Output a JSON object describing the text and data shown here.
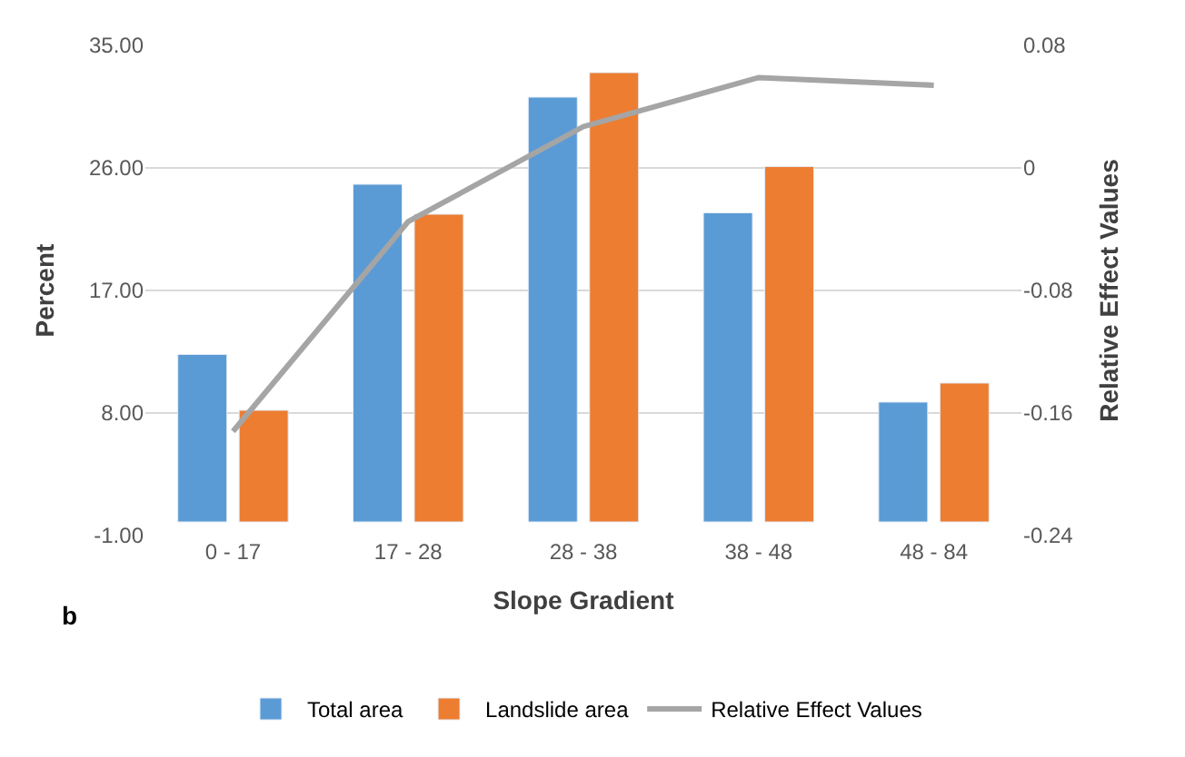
{
  "chart_data": {
    "type": "bar",
    "xlabel": "Slope Gradient",
    "ylabel": "Percent",
    "y2label": "Relative Effect Values",
    "categories": [
      "0 - 17",
      "17 - 28",
      "28 - 38",
      "38 - 48",
      "48 - 84"
    ],
    "series": [
      {
        "name": "Total area",
        "color": "#5b9bd5",
        "values": [
          12.3,
          24.8,
          31.2,
          22.7,
          8.8
        ]
      },
      {
        "name": "Landslide area",
        "color": "#ed7d31",
        "values": [
          8.2,
          22.6,
          33.0,
          26.1,
          10.2
        ]
      },
      {
        "name": "Relative Effect Values",
        "type": "line",
        "axis": "y2",
        "color": "#a5a5a5",
        "marker": "none",
        "values": [
          -0.172,
          -0.035,
          0.027,
          0.059,
          0.054
        ]
      }
    ],
    "ylim": [
      -1,
      35
    ],
    "yticks": [
      {
        "value": -1,
        "label": "-1.00"
      },
      {
        "value": 8,
        "label": "8.00"
      },
      {
        "value": 17,
        "label": "17.00"
      },
      {
        "value": 26,
        "label": "26.00"
      },
      {
        "value": 35,
        "label": "35.00"
      }
    ],
    "y2lim": [
      -0.24,
      0.08
    ],
    "y2ticks": [
      -0.24,
      -0.16,
      -0.08,
      0,
      0.08
    ],
    "grid": "y",
    "legend": "bottom",
    "annotations": [
      "b"
    ]
  }
}
